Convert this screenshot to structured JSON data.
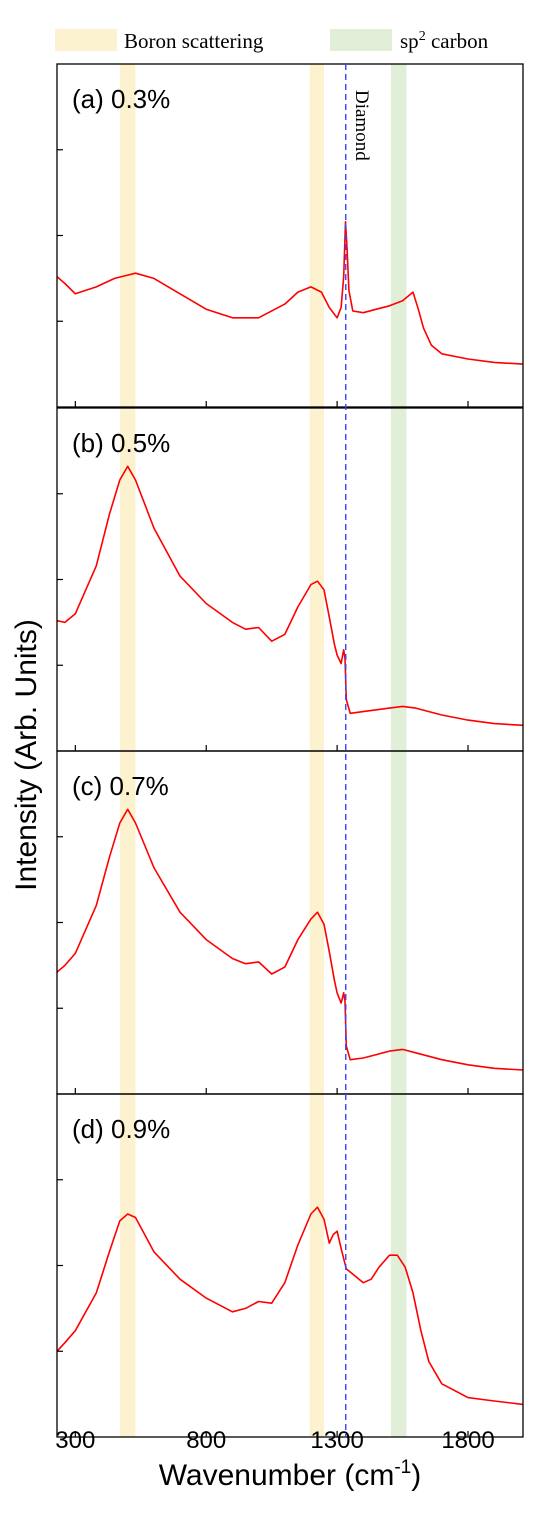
{
  "chart_data": {
    "type": "line",
    "xlabel": "Wavenumber (cm",
    "xlabel_superscript": "-1",
    "xlabel_suffix": ")",
    "ylabel": "Intensity (Arb. Units)",
    "xlim": [
      230,
      2010
    ],
    "xticks": [
      300,
      800,
      1300,
      1800
    ],
    "y_tick_labels_shown": false,
    "line_color": "#ff0000",
    "legend": [
      {
        "label": "Boron scattering",
        "color": "#fdf2cf"
      },
      {
        "label_main": "sp",
        "label_sup": "2",
        "label_rest": " carbon",
        "color": "#e1efd9"
      }
    ],
    "bands": [
      {
        "name": "Boron scattering",
        "x_range": [
          470,
          530
        ],
        "color": "#fdf2cf"
      },
      {
        "name": "Boron scattering",
        "x_range": [
          1195,
          1250
        ],
        "color": "#fdf2cf"
      },
      {
        "name": "sp2 carbon",
        "x_range": [
          1505,
          1565
        ],
        "color": "#e1efd9"
      }
    ],
    "reference_line": {
      "label": "Diamond",
      "x": 1333,
      "color": "#3344ff",
      "style": "dashed"
    },
    "panels": [
      {
        "label": "(a) 0.3%",
        "ylim": [
          0,
          10
        ],
        "x": [
          230,
          260,
          300,
          380,
          450,
          530,
          600,
          700,
          800,
          900,
          1000,
          1100,
          1150,
          1200,
          1240,
          1270,
          1300,
          1315,
          1325,
          1332,
          1338,
          1345,
          1360,
          1400,
          1450,
          1500,
          1550,
          1590,
          1610,
          1630,
          1660,
          1700,
          1800,
          1900,
          2010
        ],
        "y": [
          3.8,
          3.6,
          3.3,
          3.5,
          3.75,
          3.9,
          3.75,
          3.3,
          2.85,
          2.6,
          2.6,
          3.0,
          3.35,
          3.5,
          3.35,
          2.9,
          2.6,
          2.9,
          3.8,
          5.4,
          4.6,
          3.4,
          2.8,
          2.75,
          2.85,
          2.95,
          3.1,
          3.35,
          2.85,
          2.3,
          1.8,
          1.55,
          1.4,
          1.3,
          1.25
        ]
      },
      {
        "label": "(b) 0.5%",
        "ylim": [
          0,
          10
        ],
        "x": [
          230,
          260,
          300,
          380,
          430,
          470,
          500,
          530,
          600,
          700,
          800,
          900,
          950,
          1000,
          1050,
          1100,
          1150,
          1200,
          1225,
          1250,
          1270,
          1290,
          1300,
          1315,
          1320,
          1325,
          1330,
          1335,
          1350,
          1400,
          1450,
          1500,
          1550,
          1600,
          1700,
          1800,
          1900,
          2010
        ],
        "y": [
          3.8,
          3.75,
          4.0,
          5.4,
          6.9,
          7.9,
          8.3,
          7.9,
          6.5,
          5.1,
          4.3,
          3.75,
          3.55,
          3.6,
          3.2,
          3.4,
          4.2,
          4.85,
          4.95,
          4.7,
          3.9,
          3.1,
          2.8,
          2.55,
          2.75,
          2.95,
          2.7,
          1.5,
          1.1,
          1.15,
          1.2,
          1.25,
          1.3,
          1.25,
          1.05,
          0.9,
          0.8,
          0.75
        ]
      },
      {
        "label": "(c) 0.7%",
        "ylim": [
          0,
          10
        ],
        "x": [
          230,
          260,
          300,
          380,
          430,
          470,
          500,
          530,
          600,
          700,
          800,
          900,
          950,
          1000,
          1050,
          1100,
          1150,
          1200,
          1225,
          1250,
          1270,
          1290,
          1300,
          1315,
          1320,
          1325,
          1330,
          1335,
          1350,
          1400,
          1450,
          1500,
          1550,
          1600,
          1700,
          1800,
          1900,
          2010
        ],
        "y": [
          3.55,
          3.75,
          4.1,
          5.5,
          6.9,
          7.9,
          8.3,
          7.9,
          6.6,
          5.3,
          4.5,
          3.95,
          3.8,
          3.85,
          3.5,
          3.7,
          4.5,
          5.1,
          5.3,
          4.95,
          4.15,
          3.3,
          2.95,
          2.65,
          2.8,
          2.95,
          2.7,
          1.4,
          1.0,
          1.05,
          1.15,
          1.25,
          1.3,
          1.2,
          1.0,
          0.85,
          0.75,
          0.7
        ]
      },
      {
        "label": "(d) 0.9%",
        "ylim": [
          0,
          10
        ],
        "x": [
          230,
          260,
          300,
          380,
          430,
          470,
          500,
          530,
          600,
          700,
          800,
          900,
          950,
          1000,
          1050,
          1100,
          1150,
          1200,
          1225,
          1250,
          1270,
          1285,
          1300,
          1315,
          1335,
          1360,
          1400,
          1430,
          1460,
          1500,
          1530,
          1560,
          1590,
          1620,
          1650,
          1700,
          1800,
          1900,
          2010
        ],
        "y": [
          2.5,
          2.75,
          3.1,
          4.2,
          5.4,
          6.3,
          6.5,
          6.4,
          5.4,
          4.6,
          4.05,
          3.65,
          3.75,
          3.95,
          3.9,
          4.5,
          5.6,
          6.5,
          6.7,
          6.35,
          5.65,
          5.9,
          6.0,
          5.5,
          4.9,
          4.75,
          4.5,
          4.6,
          4.95,
          5.3,
          5.3,
          4.95,
          4.2,
          3.1,
          2.2,
          1.55,
          1.15,
          1.05,
          0.95
        ]
      }
    ]
  }
}
